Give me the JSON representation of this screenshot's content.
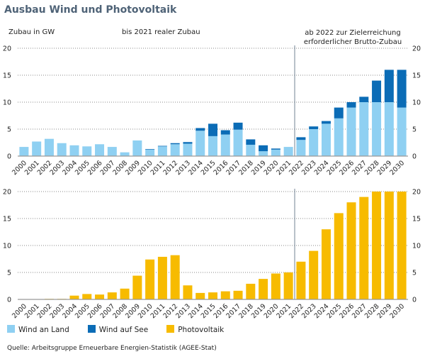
{
  "title": "Ausbau Wind und Photovoltaik",
  "colors": {
    "wind_land": "#8fd0f2",
    "wind_see": "#0b6cb6",
    "pv": "#f7bb00",
    "title": "#4f6377"
  },
  "source": "Quelle: Arbeitsgruppe Erneuerbare Energien-Statistik (AGEE-Stat)",
  "chart_data": [
    {
      "type": "bar",
      "stacked": true,
      "ylabel": "Zubau in GW",
      "annotations": [
        "bis 2021 realer Zubau",
        "ab 2022 zur Zielerreichung erforderlicher Brutto-Zubau"
      ],
      "ylim": [
        0,
        20
      ],
      "yticks": [
        0,
        5,
        10,
        15,
        20
      ],
      "grid": true,
      "categories": [
        "2000",
        "2001",
        "2002",
        "2003",
        "2004",
        "2005",
        "2006",
        "2007",
        "2008",
        "2009",
        "2010",
        "2011",
        "2012",
        "2013",
        "2014",
        "2015",
        "2016",
        "2017",
        "2018",
        "2019",
        "2020",
        "2021",
        "2022",
        "2023",
        "2024",
        "2025",
        "2026",
        "2027",
        "2028",
        "2029",
        "2030"
      ],
      "series": [
        {
          "name": "Wind an Land",
          "values": [
            1.7,
            2.7,
            3.2,
            2.4,
            2.0,
            1.8,
            2.2,
            1.7,
            0.7,
            2.9,
            1.2,
            1.8,
            2.2,
            2.3,
            4.7,
            3.7,
            4.0,
            4.9,
            2.1,
            0.9,
            1.2,
            1.7,
            3.0,
            5.0,
            6.0,
            7.0,
            9.0,
            10.0,
            10.0,
            10.0,
            9.0
          ]
        },
        {
          "name": "Wind auf See",
          "values": [
            0,
            0,
            0,
            0,
            0,
            0,
            0,
            0,
            0,
            0,
            0.1,
            0.1,
            0.2,
            0.3,
            0.5,
            2.3,
            0.8,
            1.3,
            1.0,
            1.1,
            0.2,
            0,
            0.5,
            0.5,
            0.5,
            2.0,
            1.0,
            1.0,
            4.0,
            6.0,
            7.0
          ]
        }
      ]
    },
    {
      "type": "bar",
      "ylim": [
        0,
        20
      ],
      "yticks": [
        0,
        5,
        10,
        15,
        20
      ],
      "grid": true,
      "categories": [
        "2000",
        "2001",
        "2002",
        "2003",
        "2004",
        "2005",
        "2006",
        "2007",
        "2008",
        "2009",
        "2010",
        "2011",
        "2012",
        "2013",
        "2014",
        "2015",
        "2016",
        "2017",
        "2018",
        "2019",
        "2020",
        "2021",
        "2022",
        "2023",
        "2024",
        "2025",
        "2026",
        "2027",
        "2028",
        "2029",
        "2030"
      ],
      "series": [
        {
          "name": "Photovoltaik",
          "values": [
            0,
            0.05,
            0.1,
            0.1,
            0.7,
            1.0,
            0.9,
            1.3,
            2.0,
            4.4,
            7.4,
            7.9,
            8.2,
            2.6,
            1.2,
            1.3,
            1.5,
            1.6,
            2.9,
            3.8,
            4.8,
            5.0,
            7.0,
            9.0,
            13.0,
            16.0,
            18.0,
            19.0,
            20.0,
            20.0,
            20.0
          ]
        }
      ]
    }
  ],
  "legend": [
    "Wind an Land",
    "Wind auf See",
    "Photovoltaik"
  ]
}
